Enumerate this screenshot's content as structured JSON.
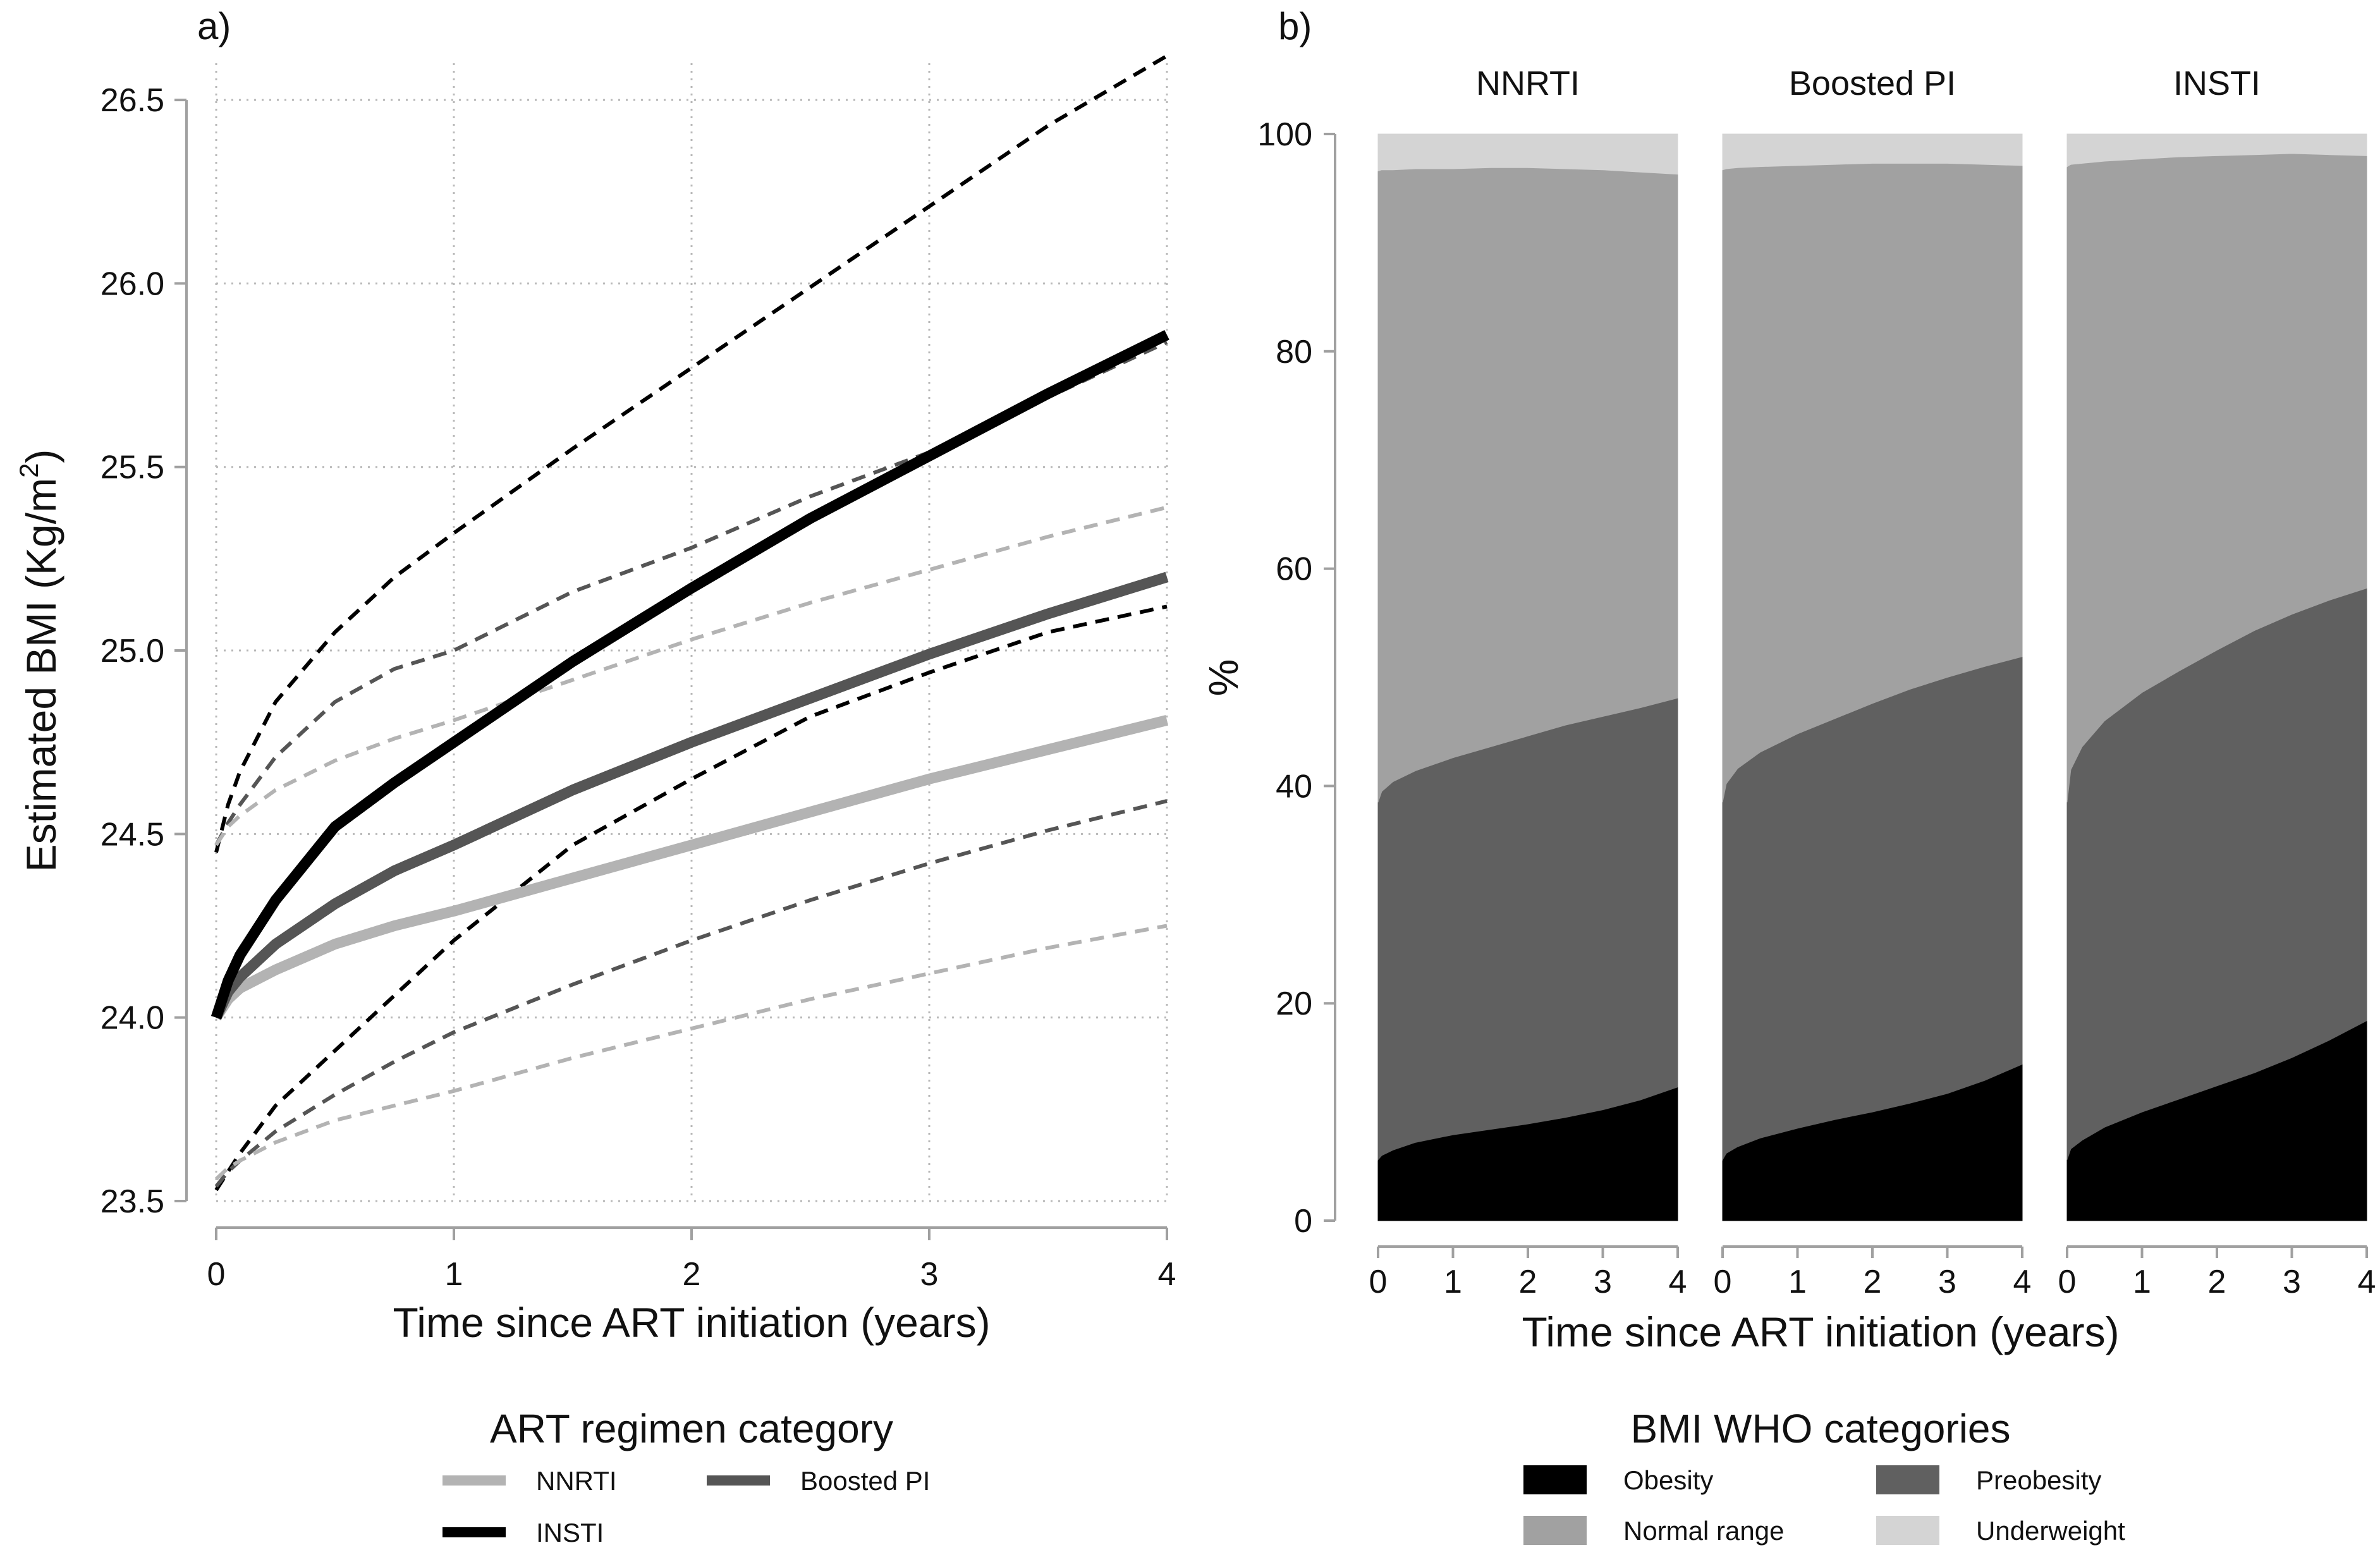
{
  "chart_data": [
    {
      "panel": "a)",
      "type": "line",
      "xlabel": "Time since ART initiation (years)",
      "ylabel": "Estimated BMI (Kg/m",
      "ylabel_superscript": "2",
      "ylabel_suffix": ")",
      "xlim": [
        0,
        4
      ],
      "ylim": [
        23.5,
        26.6
      ],
      "xticks": [
        0,
        1,
        2,
        3,
        4
      ],
      "yticks": [
        23.5,
        24.0,
        24.5,
        25.0,
        25.5,
        26.0,
        26.5
      ],
      "ytick_labels": [
        "23.5",
        "24.0",
        "24.5",
        "25.0",
        "25.5",
        "26.0",
        "26.5"
      ],
      "grid": true,
      "x": [
        0,
        0.05,
        0.1,
        0.25,
        0.5,
        0.75,
        1,
        1.5,
        2,
        2.5,
        3,
        3.5,
        4
      ],
      "series": [
        {
          "name": "NNRTI",
          "color": "#b3b3b3",
          "estimate": [
            24.0,
            24.05,
            24.08,
            24.13,
            24.2,
            24.25,
            24.29,
            24.38,
            24.47,
            24.56,
            24.65,
            24.73,
            24.81
          ],
          "lower": [
            23.56,
            23.59,
            23.61,
            23.66,
            23.72,
            23.76,
            23.8,
            23.89,
            23.97,
            24.05,
            24.12,
            24.19,
            24.25
          ],
          "upper": [
            24.47,
            24.52,
            24.55,
            24.62,
            24.7,
            24.76,
            24.81,
            24.92,
            25.03,
            25.13,
            25.22,
            25.31,
            25.39
          ]
        },
        {
          "name": "Boosted PI",
          "color": "#555555",
          "estimate": [
            24.0,
            24.07,
            24.11,
            24.2,
            24.31,
            24.4,
            24.47,
            24.62,
            24.75,
            24.87,
            24.99,
            25.1,
            25.2
          ],
          "lower": [
            23.54,
            23.58,
            23.61,
            23.69,
            23.79,
            23.88,
            23.96,
            24.09,
            24.21,
            24.32,
            24.42,
            24.51,
            24.59
          ],
          "upper": [
            24.47,
            24.53,
            24.58,
            24.71,
            24.86,
            24.95,
            25.0,
            25.16,
            25.28,
            25.42,
            25.54,
            25.69,
            25.84
          ]
        },
        {
          "name": "INSTI",
          "color": "#000000",
          "estimate": [
            24.0,
            24.1,
            24.17,
            24.32,
            24.52,
            24.64,
            24.75,
            24.97,
            25.17,
            25.36,
            25.53,
            25.7,
            25.86
          ],
          "lower": [
            23.53,
            23.58,
            23.63,
            23.76,
            23.91,
            24.06,
            24.21,
            24.47,
            24.65,
            24.82,
            24.94,
            25.05,
            25.12
          ],
          "upper": [
            24.45,
            24.58,
            24.67,
            24.86,
            25.05,
            25.2,
            25.32,
            25.55,
            25.77,
            25.99,
            26.21,
            26.43,
            26.62
          ]
        }
      ]
    },
    {
      "panel": "b)",
      "type": "area",
      "stacked": true,
      "xlabel": "Time since ART initiation (years)",
      "ylabel": "%",
      "xlim": [
        0,
        4
      ],
      "ylim": [
        0,
        100
      ],
      "xticks": [
        0,
        1,
        2,
        3,
        4
      ],
      "yticks": [
        0,
        20,
        40,
        60,
        80,
        100
      ],
      "grid": false,
      "categories_order": [
        "Obesity",
        "Preobesity",
        "Normal range",
        "Underweight"
      ],
      "colors": {
        "Obesity": "#000000",
        "Preobesity": "#606060",
        "Normal range": "#a1a1a1",
        "Underweight": "#d4d4d4"
      },
      "x": [
        0,
        0.05,
        0.2,
        0.5,
        1,
        1.5,
        2,
        2.5,
        3,
        3.5,
        4
      ],
      "facets": [
        {
          "name": "NNRTI",
          "obesity_top": [
            5.6,
            6.0,
            6.5,
            7.2,
            7.9,
            8.4,
            8.9,
            9.5,
            10.2,
            11.1,
            12.3
          ],
          "preobesity_top": [
            38.5,
            39.5,
            40.4,
            41.4,
            42.6,
            43.6,
            44.6,
            45.6,
            46.4,
            47.2,
            48.1
          ],
          "normal_top": [
            96.6,
            96.7,
            96.7,
            96.8,
            96.8,
            96.9,
            96.9,
            96.8,
            96.7,
            96.5,
            96.3
          ],
          "underweight_top": [
            100,
            100,
            100,
            100,
            100,
            100,
            100,
            100,
            100,
            100,
            100
          ]
        },
        {
          "name": "Boosted PI",
          "obesity_top": [
            5.6,
            6.2,
            6.8,
            7.6,
            8.5,
            9.3,
            10.0,
            10.8,
            11.7,
            12.9,
            14.4
          ],
          "preobesity_top": [
            38.5,
            40.2,
            41.6,
            43.1,
            44.8,
            46.2,
            47.6,
            48.9,
            50.0,
            51.0,
            51.9
          ],
          "normal_top": [
            96.7,
            96.8,
            96.9,
            97.0,
            97.1,
            97.2,
            97.3,
            97.3,
            97.3,
            97.2,
            97.1
          ],
          "underweight_top": [
            100,
            100,
            100,
            100,
            100,
            100,
            100,
            100,
            100,
            100,
            100
          ]
        },
        {
          "name": "INSTI",
          "obesity_top": [
            5.6,
            6.6,
            7.4,
            8.6,
            10.0,
            11.2,
            12.4,
            13.6,
            15.0,
            16.6,
            18.4
          ],
          "preobesity_top": [
            38.5,
            41.5,
            43.6,
            46.0,
            48.6,
            50.6,
            52.5,
            54.3,
            55.8,
            57.1,
            58.2
          ],
          "normal_top": [
            97.0,
            97.2,
            97.3,
            97.5,
            97.7,
            97.9,
            98.0,
            98.1,
            98.2,
            98.1,
            98.0
          ],
          "underweight_top": [
            100,
            100,
            100,
            100,
            100,
            100,
            100,
            100,
            100,
            100,
            100
          ]
        }
      ]
    }
  ],
  "legend_a": {
    "title": "ART regimen category",
    "items": [
      {
        "label": "NNRTI",
        "color": "#b3b3b3"
      },
      {
        "label": "Boosted PI",
        "color": "#555555"
      },
      {
        "label": "INSTI",
        "color": "#000000"
      }
    ]
  },
  "legend_b": {
    "title": "BMI WHO categories",
    "items": [
      {
        "label": "Obesity",
        "color": "#000000"
      },
      {
        "label": "Preobesity",
        "color": "#606060"
      },
      {
        "label": "Normal range",
        "color": "#a1a1a1"
      },
      {
        "label": "Underweight",
        "color": "#d4d4d4"
      }
    ]
  }
}
